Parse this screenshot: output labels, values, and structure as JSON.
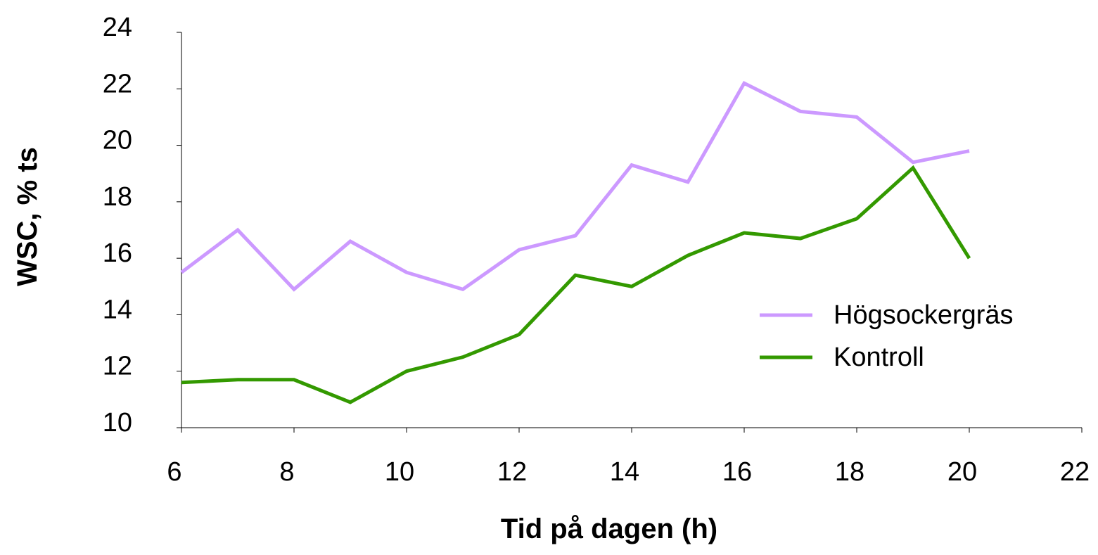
{
  "chart_data": {
    "type": "line",
    "x_label": "Tid på dagen (h)",
    "y_label": "WSC, % ts",
    "x": [
      6,
      7,
      8,
      9,
      10,
      11,
      12,
      13,
      14,
      15,
      16,
      17,
      18,
      19,
      20
    ],
    "series": [
      {
        "name": "Högsockergräs",
        "color": "#cc99ff",
        "values": [
          15.5,
          17.0,
          14.9,
          16.6,
          15.5,
          14.9,
          16.3,
          16.8,
          19.3,
          18.7,
          22.2,
          21.2,
          21.0,
          19.4,
          19.8
        ]
      },
      {
        "name": "Kontroll",
        "color": "#339900",
        "values": [
          11.6,
          11.7,
          11.7,
          10.9,
          12.0,
          12.5,
          13.3,
          15.4,
          15.0,
          16.1,
          16.9,
          16.7,
          17.4,
          19.2,
          16.0
        ]
      }
    ],
    "xlim": [
      6,
      22
    ],
    "xticks": [
      6,
      8,
      10,
      12,
      14,
      16,
      18,
      20,
      22
    ],
    "ylim": [
      10,
      24
    ],
    "yticks": [
      10,
      12,
      14,
      16,
      18,
      20,
      22,
      24
    ],
    "legend": "right"
  }
}
